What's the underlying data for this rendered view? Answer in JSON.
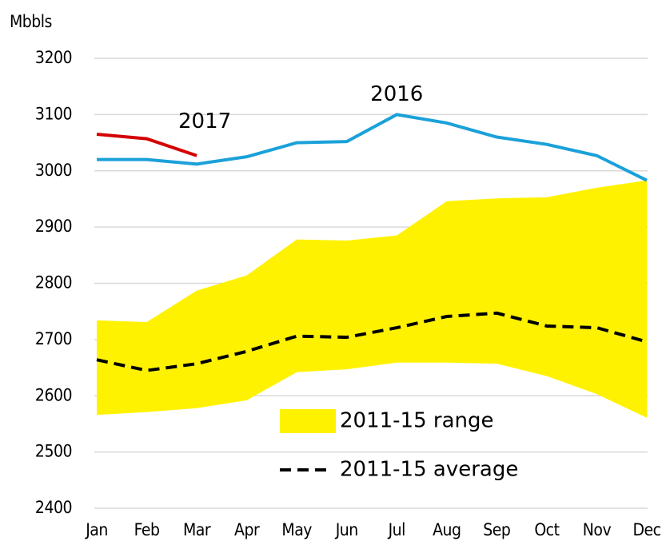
{
  "chart_data": {
    "type": "line",
    "ylabel": "Mbbls",
    "categories": [
      "Jan",
      "Feb",
      "Mar",
      "Apr",
      "May",
      "Jun",
      "Jul",
      "Aug",
      "Sep",
      "Oct",
      "Nov",
      "Dec"
    ],
    "ylim": [
      2400,
      3200
    ],
    "yticks": [
      2400,
      2500,
      2600,
      2700,
      2800,
      2900,
      3000,
      3100,
      3200
    ],
    "grid": true,
    "legend": "lower right",
    "series": [
      {
        "name": "2011-15 range",
        "kind": "range",
        "color": "#fff200",
        "lower": [
          2566,
          2571,
          2578,
          2592,
          2642,
          2647,
          2659,
          2659,
          2657,
          2635,
          2603,
          2561
        ],
        "upper": [
          2734,
          2731,
          2787,
          2814,
          2878,
          2876,
          2885,
          2946,
          2951,
          2953,
          2970,
          2983
        ]
      },
      {
        "name": "2011-15 average",
        "kind": "dashed",
        "color": "#000000",
        "values": [
          2664,
          2645,
          2657,
          2679,
          2706,
          2704,
          2721,
          2741,
          2747,
          2724,
          2721,
          2696
        ]
      },
      {
        "name": "2016",
        "kind": "labeled",
        "color": "#1ba1d9",
        "values": [
          3020,
          3020,
          3012,
          3025,
          3050,
          3052,
          3100,
          3085,
          3060,
          3047,
          3027,
          2983
        ]
      },
      {
        "name": "2017",
        "kind": "labeled",
        "color": "#d40000",
        "values": [
          3065,
          3057,
          3027,
          null,
          null,
          null,
          null,
          null,
          null,
          null,
          null,
          null
        ]
      }
    ]
  }
}
